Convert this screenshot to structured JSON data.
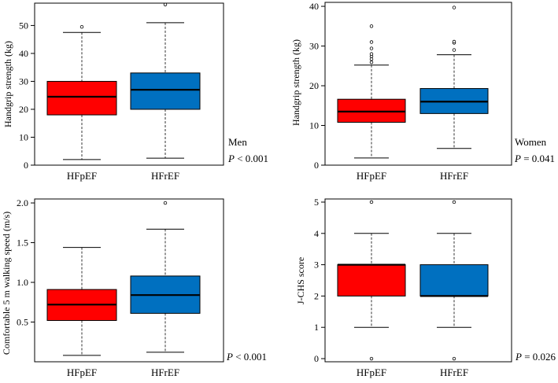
{
  "chart_data": [
    {
      "type": "box",
      "id": "men-handgrip",
      "ylabel": "Handgrip strength (kg)",
      "ylim": [
        0,
        58
      ],
      "yticks": [
        0,
        10,
        20,
        30,
        40,
        50
      ],
      "tick_labels": [
        "0",
        "10",
        "20",
        "30",
        "40",
        "50"
      ],
      "categories": [
        "HFpEF",
        "HFrEF"
      ],
      "boxes": [
        {
          "name": "HFpEF",
          "color": "#ff0000",
          "whisker_low": 2,
          "q1": 18,
          "median": 24.5,
          "q3": 30,
          "whisker_high": 47.5,
          "outliers": [
            49.5
          ]
        },
        {
          "name": "HFrEF",
          "color": "#0070c0",
          "whisker_low": 2.5,
          "q1": 20,
          "median": 27,
          "q3": 33,
          "whisker_high": 51,
          "outliers": [
            57.5
          ]
        }
      ],
      "group": "Men",
      "p_label": "P",
      "p_value": " < 0.001"
    },
    {
      "type": "box",
      "id": "women-handgrip",
      "ylabel": "Handgrip strength (kg)",
      "ylim": [
        0,
        41
      ],
      "yticks": [
        0,
        10,
        20,
        30,
        40
      ],
      "tick_labels": [
        "0",
        "10",
        "20",
        "30",
        "40"
      ],
      "categories": [
        "HFpEF",
        "HFrEF"
      ],
      "boxes": [
        {
          "name": "HFpEF",
          "color": "#ff0000",
          "whisker_low": 1.8,
          "q1": 10.8,
          "median": 13.5,
          "q3": 16.6,
          "whisker_high": 25.2,
          "outliers": [
            25.9,
            26.7,
            27.4,
            28,
            29.4,
            31,
            35
          ]
        },
        {
          "name": "HFrEF",
          "color": "#0070c0",
          "whisker_low": 4.2,
          "q1": 13,
          "median": 16,
          "q3": 19.3,
          "whisker_high": 27.8,
          "outliers": [
            29,
            30.8,
            31.1,
            39.7
          ]
        }
      ],
      "group": "Women",
      "p_label": "P",
      "p_value": " = 0.041"
    },
    {
      "type": "box",
      "id": "walking-speed",
      "ylabel": "Comfortable 5 m walking speed (m/s)",
      "ylim": [
        0,
        2.05
      ],
      "yticks": [
        0.5,
        1.0,
        1.5,
        2.0
      ],
      "tick_labels": [
        "0.5",
        "1.0",
        "1.5",
        "2.0"
      ],
      "categories": [
        "HFpEF",
        "HFrEF"
      ],
      "boxes": [
        {
          "name": "HFpEF",
          "color": "#ff0000",
          "whisker_low": 0.08,
          "q1": 0.52,
          "median": 0.72,
          "q3": 0.91,
          "whisker_high": 1.44,
          "outliers": []
        },
        {
          "name": "HFrEF",
          "color": "#0070c0",
          "whisker_low": 0.12,
          "q1": 0.61,
          "median": 0.84,
          "q3": 1.08,
          "whisker_high": 1.67,
          "outliers": [
            2.0
          ]
        }
      ],
      "group": "",
      "p_label": "P",
      "p_value": " < 0.001"
    },
    {
      "type": "box",
      "id": "jchs-score",
      "ylabel": "J-CHS score",
      "ylim": [
        -0.1,
        5.1
      ],
      "yticks": [
        0,
        1,
        2,
        3,
        4,
        5
      ],
      "tick_labels": [
        "0",
        "1",
        "2",
        "3",
        "4",
        "5"
      ],
      "categories": [
        "HFpEF",
        "HFrEF"
      ],
      "boxes": [
        {
          "name": "HFpEF",
          "color": "#ff0000",
          "whisker_low": 1,
          "q1": 2,
          "median": 3,
          "q3": 3,
          "whisker_high": 4,
          "outliers": [
            0,
            5
          ]
        },
        {
          "name": "HFrEF",
          "color": "#0070c0",
          "whisker_low": 1,
          "q1": 2,
          "median": 2,
          "q3": 3,
          "whisker_high": 4,
          "outliers": [
            0,
            5
          ]
        }
      ],
      "group": "",
      "p_label": "P",
      "p_value": " = 0.026"
    }
  ]
}
